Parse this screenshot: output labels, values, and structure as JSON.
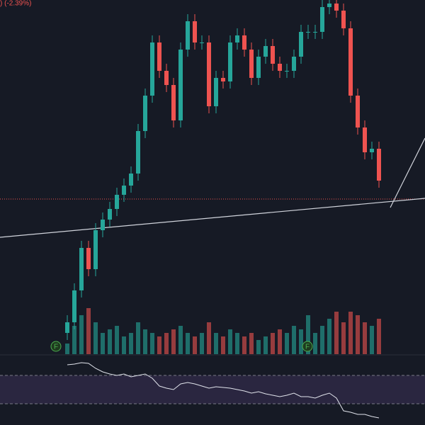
{
  "chart_data": {
    "type": "candlestick",
    "title": ") (-2.39%)",
    "open": [
      30,
      45,
      90,
      150,
      120,
      175,
      190,
      205,
      225,
      238,
      255,
      315,
      365,
      440,
      400,
      380,
      330,
      430,
      470,
      440,
      440,
      350,
      390,
      385,
      440,
      450,
      430,
      390,
      420,
      435,
      410,
      400,
      400,
      420,
      455,
      455,
      455,
      490,
      495,
      485,
      460,
      365,
      320,
      285,
      290
    ],
    "high": [
      55,
      100,
      160,
      160,
      185,
      200,
      215,
      235,
      248,
      265,
      325,
      375,
      450,
      450,
      410,
      390,
      440,
      480,
      480,
      450,
      450,
      400,
      400,
      450,
      460,
      460,
      440,
      430,
      445,
      445,
      420,
      410,
      430,
      465,
      465,
      465,
      500,
      500,
      500,
      495,
      470,
      375,
      330,
      300,
      300
    ],
    "low": [
      20,
      35,
      80,
      110,
      110,
      165,
      180,
      195,
      215,
      228,
      245,
      305,
      355,
      390,
      370,
      320,
      320,
      420,
      430,
      430,
      340,
      340,
      375,
      375,
      430,
      420,
      380,
      380,
      410,
      400,
      390,
      390,
      390,
      410,
      445,
      445,
      445,
      480,
      475,
      450,
      355,
      310,
      275,
      275,
      235
    ],
    "close": [
      45,
      90,
      150,
      120,
      175,
      190,
      205,
      225,
      238,
      255,
      315,
      365,
      440,
      400,
      380,
      330,
      430,
      470,
      440,
      440,
      350,
      390,
      385,
      440,
      450,
      430,
      390,
      420,
      435,
      410,
      400,
      400,
      420,
      455,
      455,
      455,
      490,
      495,
      485,
      460,
      365,
      320,
      285,
      290,
      245
    ],
    "volume": [
      15,
      40,
      55,
      65,
      45,
      30,
      35,
      40,
      25,
      30,
      45,
      35,
      30,
      25,
      30,
      35,
      40,
      30,
      25,
      30,
      45,
      30,
      25,
      35,
      30,
      25,
      30,
      20,
      25,
      30,
      35,
      30,
      40,
      35,
      55,
      30,
      40,
      50,
      60,
      45,
      60,
      55,
      45,
      40,
      50
    ],
    "rsi": [
      85,
      86,
      88,
      87,
      80,
      75,
      72,
      70,
      72,
      68,
      70,
      72,
      66,
      55,
      52,
      50,
      58,
      60,
      58,
      55,
      52,
      54,
      53,
      52,
      50,
      48,
      45,
      47,
      44,
      42,
      40,
      42,
      45,
      40,
      40,
      38,
      42,
      45,
      38,
      20,
      18,
      15,
      15,
      12,
      10
    ],
    "up_color": "#26a69a",
    "down_color": "#ef5350",
    "ylim": [
      0,
      500
    ],
    "volume_lim": [
      0,
      100
    ],
    "rsi_lim": [
      0,
      100
    ],
    "rsi_levels": [
      70,
      30
    ],
    "price_line": 219,
    "annotations": [
      "F",
      "F"
    ]
  }
}
